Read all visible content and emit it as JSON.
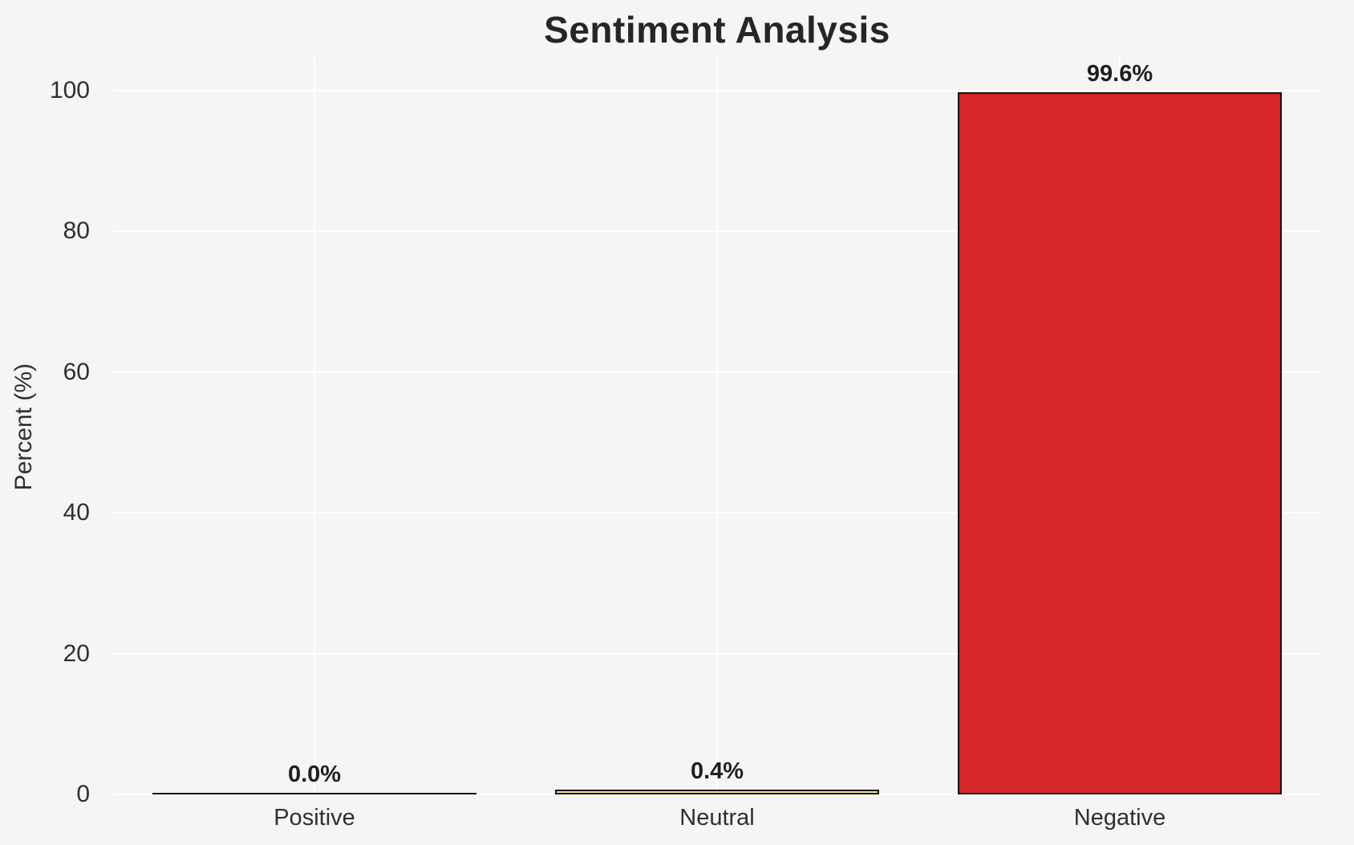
{
  "chart_data": {
    "type": "bar",
    "title": "Sentiment Analysis",
    "xlabel": "",
    "ylabel": "Percent (%)",
    "categories": [
      "Positive",
      "Neutral",
      "Negative"
    ],
    "values": [
      0.0,
      0.4,
      99.6
    ],
    "value_labels": [
      "0.0%",
      "0.4%",
      "99.6%"
    ],
    "yticks": [
      0,
      20,
      40,
      60,
      80,
      100
    ],
    "ylim": [
      0,
      105
    ],
    "grid": true,
    "legend": false,
    "bar_colors": [
      null,
      "#f0e68c",
      "#d62728"
    ],
    "bar_edge_color": "#141414",
    "gridline_color": "#ffffff",
    "background_color": "#f5f5f6",
    "title_color": "#262626",
    "tick_label_color": "#2f2f2f"
  }
}
